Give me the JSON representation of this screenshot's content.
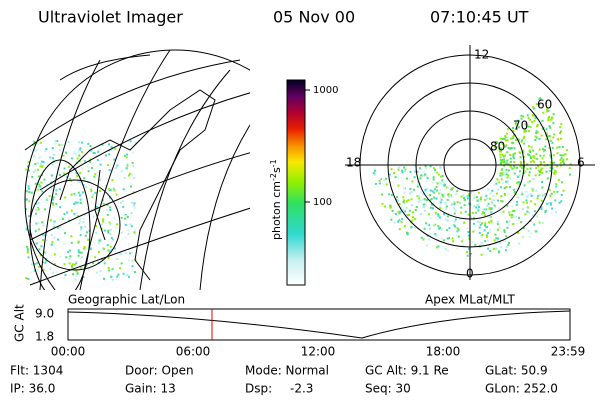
{
  "header": {
    "instrument": "Ultraviolet Imager",
    "date": "05 Nov 00",
    "time": "07:10:45 UT"
  },
  "colorbar": {
    "ticks": [
      "1000",
      "100"
    ],
    "unit": {
      "base": "photon cm",
      "exp1": "-2",
      "mid": "s",
      "exp2": "-1"
    }
  },
  "polar": {
    "labels": {
      "top": "12",
      "left": "18",
      "right": "6",
      "bottom": "0"
    },
    "rings": [
      "60",
      "70",
      "80"
    ]
  },
  "panels": {
    "left": "Geographic Lat/Lon",
    "right": "Apex MLat/MLT"
  },
  "timeline": {
    "axis_label": "GC Alt",
    "y_labels": [
      "9.0",
      "1.8"
    ],
    "x_labels": [
      "00:00",
      "06:00",
      "12:00",
      "18:00",
      "23:59"
    ]
  },
  "info": [
    [
      "Flt: 1304",
      "IP: 36.0"
    ],
    [
      "Door: Open",
      "Gain: 13"
    ],
    [
      "Mode: Normal",
      "Dsp:",
      "-2.3"
    ],
    [
      "GC Alt: 9.1 Re",
      "Seq: 30"
    ],
    [
      "GLat: 50.9",
      "GLon: 252.0"
    ]
  ]
}
